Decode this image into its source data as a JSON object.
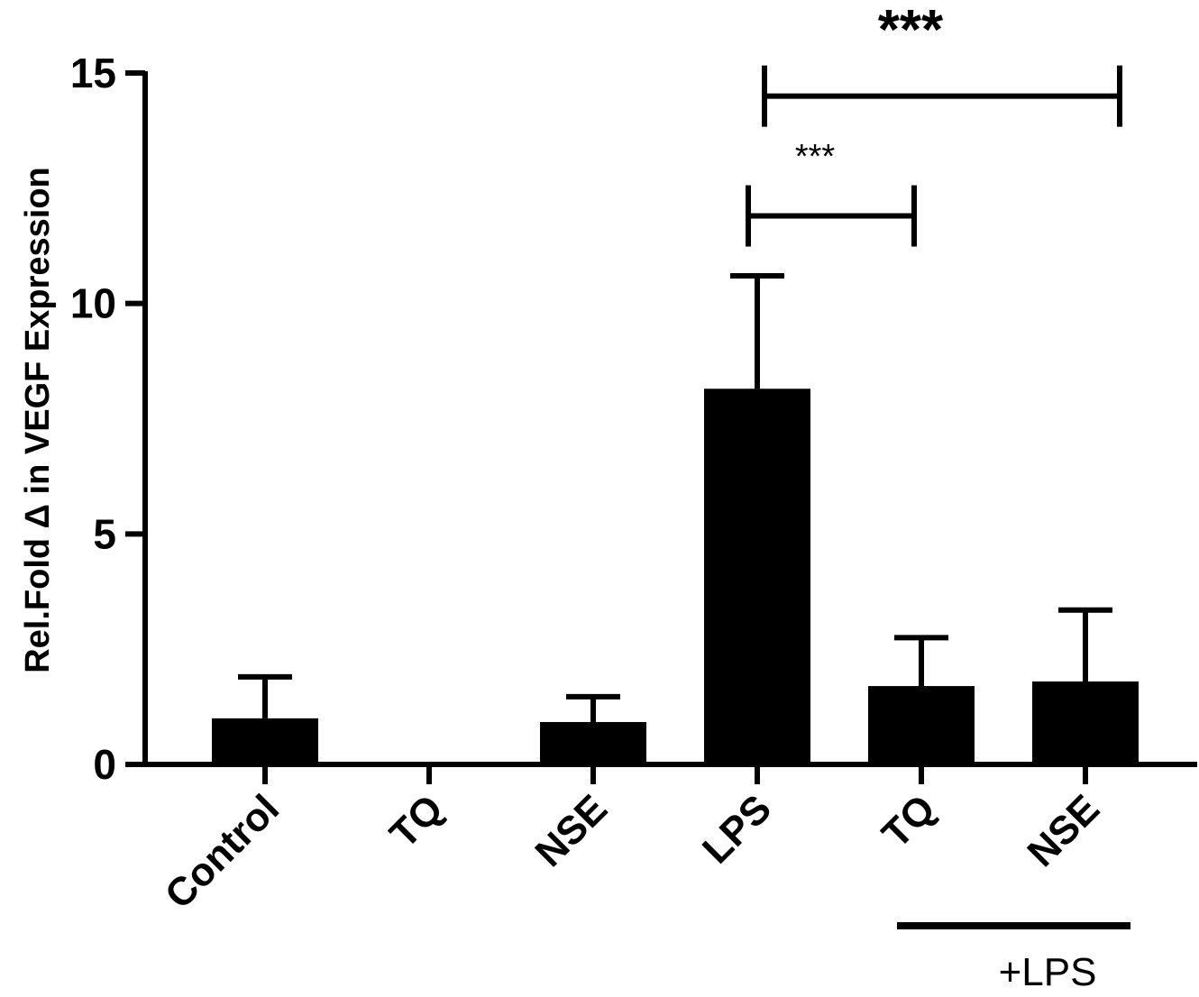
{
  "chart_data": {
    "type": "bar",
    "title": "",
    "xlabel": "",
    "ylabel": "Rel.Fold Δ in VEGF Expression",
    "ylim": [
      0,
      15
    ],
    "yticks": [
      "0",
      "5",
      "10",
      "15"
    ],
    "categories": [
      "Control",
      "TQ",
      "NSE",
      "LPS",
      "TQ",
      "NSE"
    ],
    "values": [
      1.0,
      0.0,
      0.92,
      8.15,
      1.7,
      1.8
    ],
    "error_upper": [
      0.9,
      0.0,
      0.55,
      2.45,
      1.05,
      1.55
    ],
    "bar_color": "#000000",
    "group_annotation": {
      "label": "+LPS",
      "categories": [
        4,
        5
      ]
    },
    "significance": [
      {
        "from": 3,
        "to": 4,
        "y": 11.9,
        "label": "***",
        "size": "small"
      },
      {
        "from": 3,
        "to": 5,
        "y": 14.5,
        "label": "***",
        "size": "big"
      }
    ],
    "grid": false,
    "legend": "none"
  }
}
